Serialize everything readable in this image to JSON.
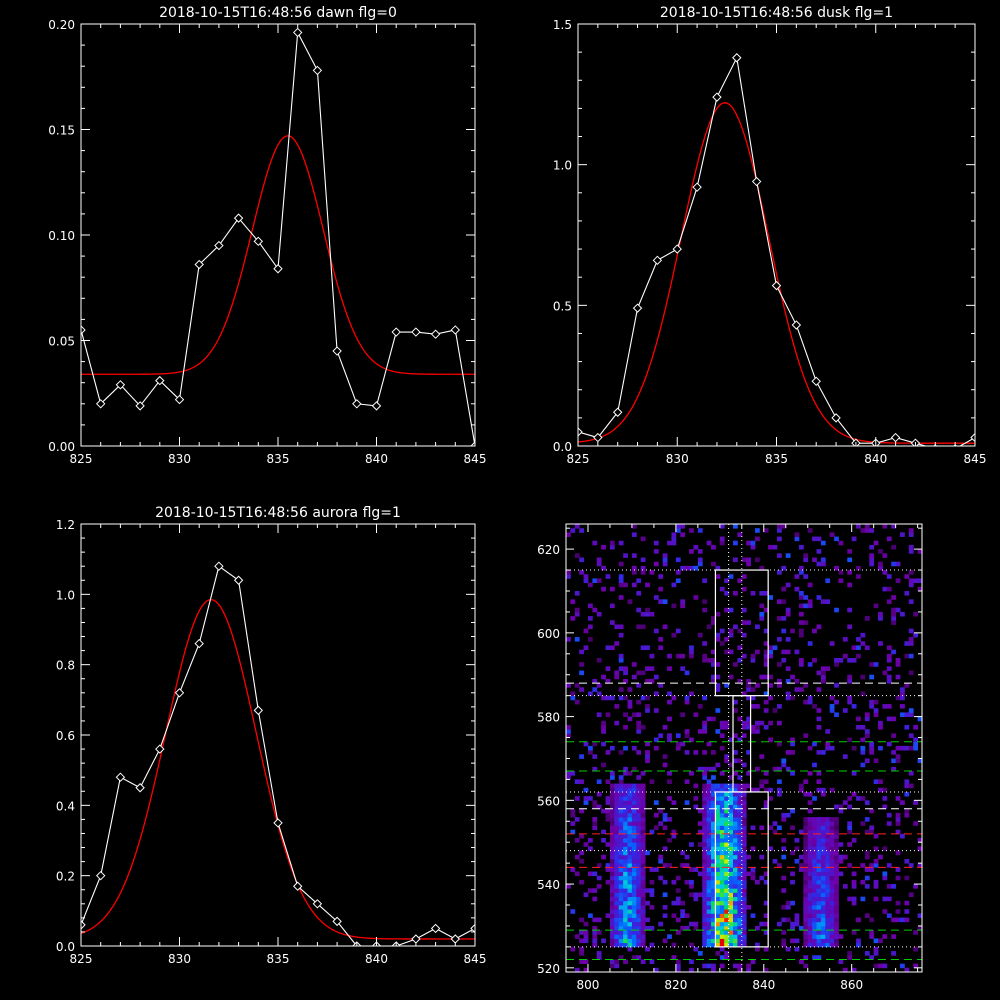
{
  "chart_data": [
    {
      "type": "line",
      "title": "2018-10-15T16:48:56 dawn flg=0",
      "xlim": [
        825,
        845
      ],
      "ylim": [
        0.0,
        0.2
      ],
      "xticks": [
        "825",
        "830",
        "835",
        "840",
        "845"
      ],
      "yticks": [
        "0.00",
        "0.05",
        "0.10",
        "0.15",
        "0.20"
      ],
      "series": [
        {
          "color": "#ffffff",
          "marker": "diamond",
          "x": [
            825,
            826,
            827,
            828,
            829,
            830,
            831,
            832,
            833,
            834,
            835,
            836,
            837,
            838,
            839,
            840,
            841,
            842,
            843,
            844,
            845
          ],
          "y": [
            0.055,
            0.02,
            0.029,
            0.019,
            0.031,
            0.022,
            0.086,
            0.095,
            0.108,
            0.097,
            0.084,
            0.196,
            0.178,
            0.045,
            0.02,
            0.019,
            0.054,
            0.054,
            0.053,
            0.055,
            0.0
          ]
        },
        {
          "color": "#ff0000",
          "fit": "gaussian",
          "baseline": 0.034,
          "amplitude": 0.113,
          "center": 835.5,
          "sigma": 1.8
        }
      ]
    },
    {
      "type": "line",
      "title": "2018-10-15T16:48:56 dusk flg=1",
      "xlim": [
        825,
        845
      ],
      "ylim": [
        0.0,
        1.5
      ],
      "xticks": [
        "825",
        "830",
        "835",
        "840",
        "845"
      ],
      "yticks": [
        "0.0",
        "0.5",
        "1.0",
        "1.5"
      ],
      "series": [
        {
          "color": "#ffffff",
          "marker": "diamond",
          "x": [
            825,
            826,
            827,
            828,
            829,
            830,
            831,
            832,
            833,
            834,
            835,
            836,
            837,
            838,
            839,
            840,
            841,
            842,
            843,
            844,
            845
          ],
          "y": [
            0.05,
            0.03,
            0.12,
            0.49,
            0.66,
            0.7,
            0.92,
            1.24,
            1.38,
            0.94,
            0.57,
            0.43,
            0.23,
            0.1,
            0.01,
            0.01,
            0.03,
            0.01,
            -0.01,
            -0.01,
            0.03
          ]
        },
        {
          "color": "#ff0000",
          "fit": "gaussian",
          "baseline": 0.01,
          "amplitude": 1.21,
          "center": 832.4,
          "sigma": 2.2
        }
      ]
    },
    {
      "type": "line",
      "title": "2018-10-15T16:48:56 aurora flg=1",
      "xlim": [
        825,
        845
      ],
      "ylim": [
        0.0,
        1.2
      ],
      "xticks": [
        "825",
        "830",
        "835",
        "840",
        "845"
      ],
      "yticks": [
        "0.0",
        "0.2",
        "0.4",
        "0.6",
        "0.8",
        "1.0",
        "1.2"
      ],
      "series": [
        {
          "color": "#ffffff",
          "marker": "diamond",
          "x": [
            825,
            826,
            827,
            828,
            829,
            830,
            831,
            832,
            833,
            834,
            835,
            836,
            837,
            838,
            839,
            840,
            841,
            842,
            843,
            844,
            845
          ],
          "y": [
            0.06,
            0.2,
            0.48,
            0.45,
            0.56,
            0.72,
            0.86,
            1.08,
            1.04,
            0.67,
            0.35,
            0.17,
            0.12,
            0.07,
            0.0,
            0.0,
            0.0,
            0.02,
            0.05,
            0.02,
            0.05
          ]
        },
        {
          "color": "#ff0000",
          "fit": "gaussian",
          "baseline": 0.02,
          "amplitude": 0.965,
          "center": 831.6,
          "sigma": 2.3
        }
      ]
    },
    {
      "type": "heatmap",
      "colormap": "rainbow",
      "xlim": [
        795,
        876
      ],
      "ylim": [
        519,
        626
      ],
      "xticks": [
        "800",
        "820",
        "840",
        "860"
      ],
      "yticks": [
        "520",
        "540",
        "560",
        "580",
        "600",
        "620"
      ],
      "emission_bands": [
        {
          "x_center": 809,
          "x_halfwidth": 3,
          "y_range": [
            525,
            563
          ],
          "peak": 0.6
        },
        {
          "x_center": 831,
          "x_halfwidth": 3.5,
          "y_range": [
            525,
            563
          ],
          "peak": 1.0
        },
        {
          "x_center": 853,
          "x_halfwidth": 3,
          "y_range": [
            525,
            555
          ],
          "peak": 0.45
        }
      ],
      "boxes": [
        {
          "x": [
            829,
            841
          ],
          "y": [
            585,
            615
          ]
        },
        {
          "x": [
            833,
            837
          ],
          "y": [
            562,
            585
          ]
        },
        {
          "x": [
            829,
            841
          ],
          "y": [
            525,
            562
          ]
        }
      ],
      "vertical_dotted_lines": [
        832,
        835
      ],
      "horizontal_lines": [
        {
          "y": 615,
          "style": "dotted",
          "color": "#ffffff"
        },
        {
          "y": 588,
          "style": "dashed",
          "color": "#ffffff"
        },
        {
          "y": 585,
          "style": "dotted",
          "color": "#ffffff"
        },
        {
          "y": 574,
          "style": "dashed",
          "color": "#00cc00"
        },
        {
          "y": 567,
          "style": "dashed",
          "color": "#00cc00"
        },
        {
          "y": 562,
          "style": "dotted",
          "color": "#ffffff"
        },
        {
          "y": 558,
          "style": "dashed",
          "color": "#ffffff"
        },
        {
          "y": 552,
          "style": "dashed",
          "color": "#ff2020"
        },
        {
          "y": 548,
          "style": "dotted",
          "color": "#ffffff"
        },
        {
          "y": 544,
          "style": "dashed",
          "color": "#ff2020"
        },
        {
          "y": 529,
          "style": "dashed",
          "color": "#00cc00"
        },
        {
          "y": 525,
          "style": "dotted",
          "color": "#ffffff"
        },
        {
          "y": 522,
          "style": "dashed",
          "color": "#00cc00"
        }
      ]
    }
  ]
}
